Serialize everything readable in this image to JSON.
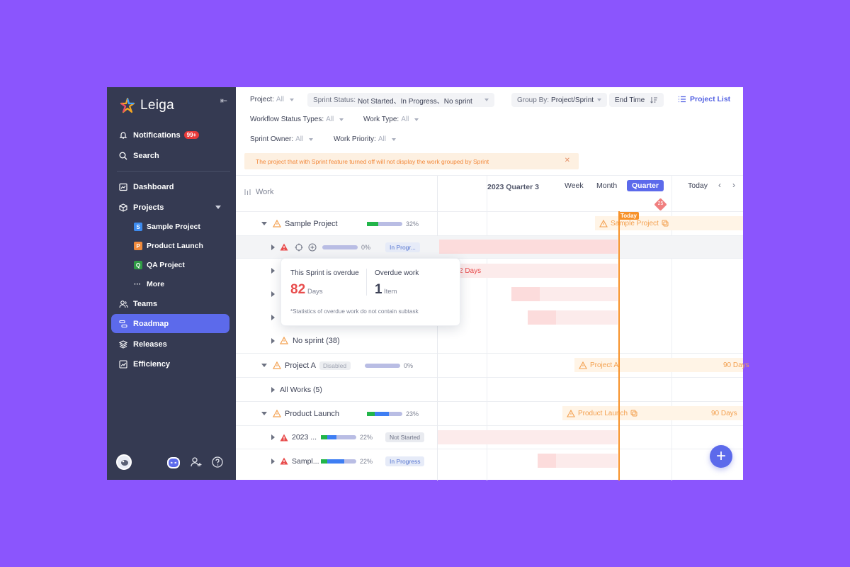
{
  "app": {
    "name": "Leiga"
  },
  "sidebar": {
    "notifications": {
      "label": "Notifications",
      "badge": "99+"
    },
    "search": "Search",
    "items": [
      {
        "label": "Dashboard"
      },
      {
        "label": "Projects"
      },
      {
        "label": "Teams"
      },
      {
        "label": "Roadmap"
      },
      {
        "label": "Releases"
      },
      {
        "label": "Efficiency"
      }
    ],
    "projects": [
      {
        "letter": "S",
        "label": "Sample Project",
        "color": "#3d8bef"
      },
      {
        "letter": "P",
        "label": "Product Launch",
        "color": "#f08a3c"
      },
      {
        "letter": "Q",
        "label": "QA Project",
        "color": "#2f9b45"
      }
    ],
    "more": "More"
  },
  "filters": {
    "project": {
      "label": "Project:",
      "value": "All"
    },
    "sprint_status": {
      "label": "Sprint Status:",
      "value": "Not Started、In Progress、No sprint"
    },
    "group_by": {
      "label": "Group By:",
      "value": "Project/Sprint"
    },
    "end_time": "End Time",
    "project_list": "Project List",
    "workflow_status": {
      "label": "Workflow Status Types:",
      "value": "All"
    },
    "work_type": {
      "label": "Work Type:",
      "value": "All"
    },
    "sprint_owner": {
      "label": "Sprint Owner:",
      "value": "All"
    },
    "work_priority": {
      "label": "Work Priority:",
      "value": "All"
    }
  },
  "notice": "The project that with Sprint feature turned off will not display the work grouped by Sprint",
  "work_header": "Work",
  "rows": {
    "sample_project": {
      "name": "Sample Project",
      "pct": "32%",
      "progress": 0.32
    },
    "sprint1": {
      "pct": "0%",
      "status": "In Progr..."
    },
    "no_sprint": {
      "name": "No sprint (38)"
    },
    "project_a": {
      "name": "Project A",
      "tag": "Disabled",
      "pct": "0%"
    },
    "all_works": {
      "name": "All Works (5)"
    },
    "product_launch": {
      "name": "Product Launch",
      "pct": "23%"
    },
    "sprint2023": {
      "name": "2023 ...",
      "pct": "22%",
      "status": "Not Started"
    },
    "sample_sprint": {
      "name": "Sampl...",
      "pct": "22%",
      "status": "In Progress"
    }
  },
  "timeline": {
    "quarter": "2023 Quarter 3",
    "zoom": [
      "Week",
      "Month",
      "Quarter"
    ],
    "active_zoom": "Quarter",
    "today_btn": "Today",
    "today_tag": "Today",
    "milestone": "25",
    "bars": {
      "sample_project": "Sample Project",
      "days_partial": "2 Days",
      "project_a": "Project A",
      "project_a_days": "90 Days",
      "product_launch": "Product Launch",
      "product_launch_days": "90 Days"
    }
  },
  "popup": {
    "overdue_label": "This Sprint is overdue",
    "overdue_days": "82",
    "days_unit": "Days",
    "work_label": "Overdue work",
    "work_count": "1",
    "item_unit": "Item",
    "note": "*Statistics of overdue work do not contain subtask"
  },
  "fab": "+"
}
